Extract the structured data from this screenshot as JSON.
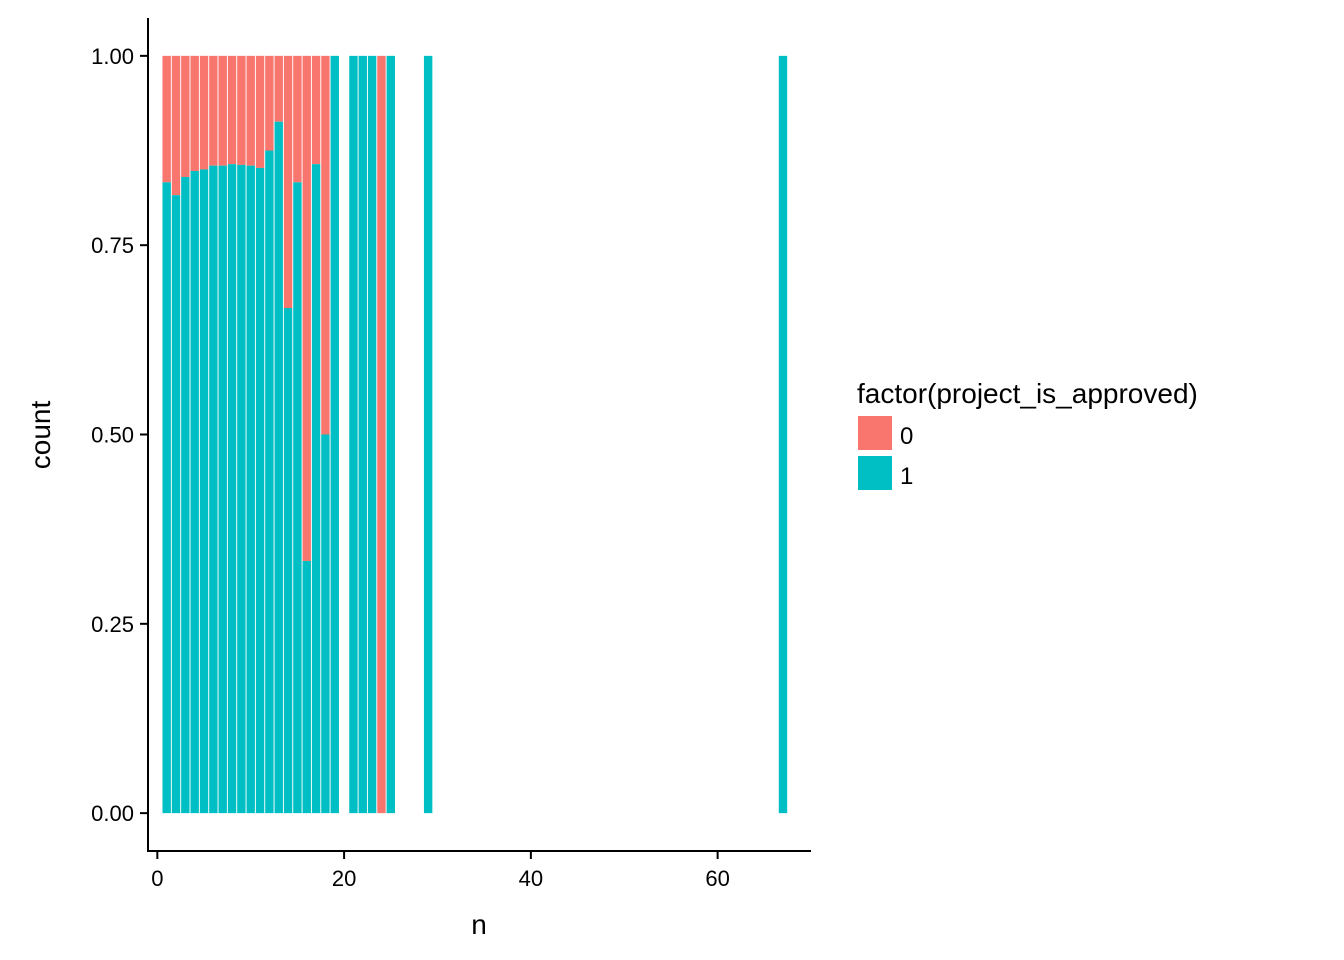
{
  "chart_data": {
    "type": "bar",
    "stacked": true,
    "position": "fill",
    "xlabel": "n",
    "ylabel": "count",
    "xlim": [
      -1,
      70
    ],
    "ylim": [
      -0.05,
      1.05
    ],
    "x_ticks": [
      0,
      20,
      40,
      60
    ],
    "x_tick_labels": [
      "0",
      "20",
      "40",
      "60"
    ],
    "y_ticks": [
      0,
      0.25,
      0.5,
      0.75,
      1
    ],
    "y_tick_labels": [
      "0.00",
      "0.25",
      "0.50",
      "0.75",
      "1.00"
    ],
    "grid": false,
    "legend": {
      "title": "factor(project_is_approved)",
      "placement": "right",
      "entries": [
        {
          "label": "0",
          "color": "#F8766D"
        },
        {
          "label": "1",
          "color": "#00BFC4"
        }
      ]
    },
    "series": [
      {
        "name": "0",
        "color": "#F8766D"
      },
      {
        "name": "1",
        "color": "#00BFC4"
      }
    ],
    "x": [
      1,
      2,
      3,
      4,
      5,
      6,
      7,
      8,
      9,
      10,
      11,
      12,
      13,
      14,
      15,
      16,
      17,
      18,
      19,
      21,
      22,
      23,
      24,
      25,
      29,
      67
    ],
    "approved_share": [
      0.833,
      0.816,
      0.84,
      0.848,
      0.85,
      0.855,
      0.855,
      0.857,
      0.856,
      0.855,
      0.852,
      0.875,
      0.913,
      0.667,
      0.833,
      0.333,
      0.857,
      0.5,
      1,
      1,
      1,
      1,
      0,
      1,
      1,
      1
    ]
  }
}
